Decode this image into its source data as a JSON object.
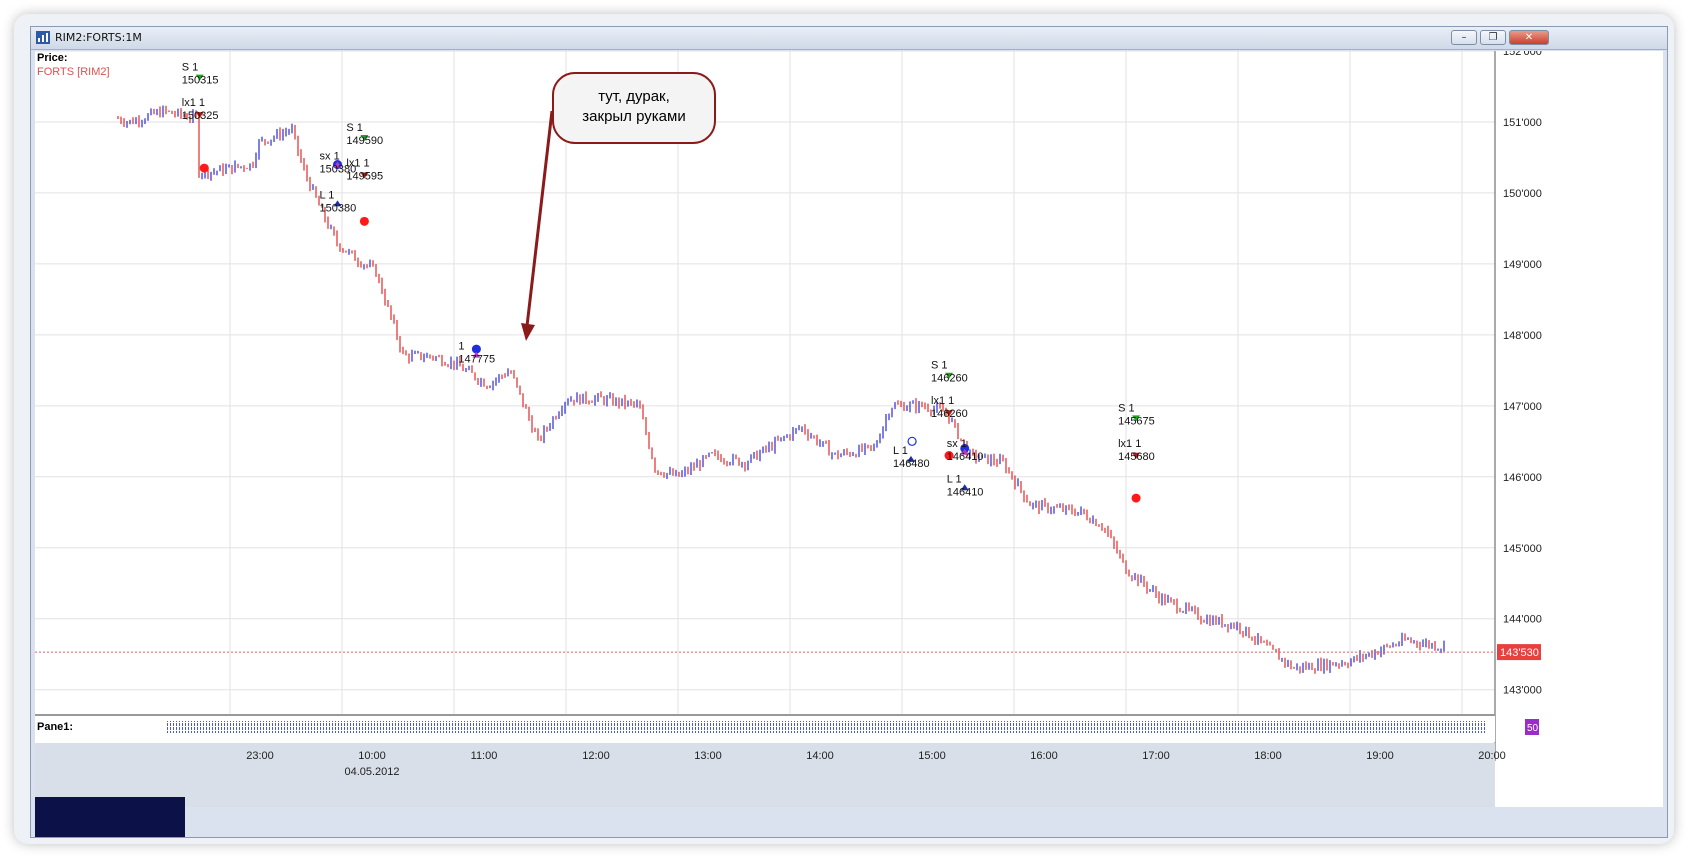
{
  "window": {
    "title": "RIM2:FORTS:1M",
    "buttons": [
      "min",
      "restore",
      "close"
    ],
    "pane_label": "Pane1:"
  },
  "price_label": "Price:",
  "legend_series": "FORTS [RIM2]",
  "callout": "тут, дурак,\nзакрыл руками",
  "colors": {
    "up": "#3a3ad8",
    "down": "#e23b3b",
    "callout_border": "#8b1a1a",
    "last_price_bg": "#e83f3f",
    "current_line": "#e86060"
  },
  "chart_data": {
    "type": "bar",
    "title": "",
    "xlabel": "",
    "ylabel": "",
    "ylim": [
      142700,
      152000
    ],
    "y_ticks": [
      "152'000",
      "151'000",
      "150'000",
      "149'000",
      "148'000",
      "147'000",
      "146'000",
      "145'000",
      "144'000",
      "143'000"
    ],
    "y_tick_values": [
      152000,
      151000,
      150000,
      149000,
      148000,
      147000,
      146000,
      145000,
      144000,
      143000
    ],
    "last_price_label": "143'530",
    "last_price": 143530,
    "x_ticks": [
      "23:00",
      "10:00",
      "11:00",
      "12:00",
      "13:00",
      "14:00",
      "15:00",
      "16:00",
      "17:00",
      "18:00",
      "19:00",
      "20:00"
    ],
    "x_tick_bar_index": [
      0,
      1,
      2,
      3,
      4,
      5,
      6,
      7,
      8,
      9,
      10,
      11
    ],
    "date_label": "04.05.2012",
    "price_path": [
      {
        "t": -1.0,
        "p": 151050
      },
      {
        "t": -0.9,
        "p": 151000
      },
      {
        "t": -0.6,
        "p": 151150
      },
      {
        "t": -0.3,
        "p": 151050
      },
      {
        "t": -0.28,
        "p": 150300
      },
      {
        "t": -0.15,
        "p": 150300
      },
      {
        "t": 0.0,
        "p": 150350
      },
      {
        "t": 0.2,
        "p": 150400
      },
      {
        "t": 0.25,
        "p": 150700
      },
      {
        "t": 0.4,
        "p": 150800
      },
      {
        "t": 0.55,
        "p": 150900
      },
      {
        "t": 0.65,
        "p": 150350
      },
      {
        "t": 0.8,
        "p": 149800
      },
      {
        "t": 0.95,
        "p": 149300
      },
      {
        "t": 1.1,
        "p": 149100
      },
      {
        "t": 1.3,
        "p": 148900
      },
      {
        "t": 1.55,
        "p": 147700
      },
      {
        "t": 1.8,
        "p": 147700
      },
      {
        "t": 2.0,
        "p": 147600
      },
      {
        "t": 2.3,
        "p": 147300
      },
      {
        "t": 2.5,
        "p": 147500
      },
      {
        "t": 2.75,
        "p": 146500
      },
      {
        "t": 3.0,
        "p": 147100
      },
      {
        "t": 3.3,
        "p": 147100
      },
      {
        "t": 3.65,
        "p": 147000
      },
      {
        "t": 3.8,
        "p": 146100
      },
      {
        "t": 4.0,
        "p": 146000
      },
      {
        "t": 4.3,
        "p": 146300
      },
      {
        "t": 4.6,
        "p": 146200
      },
      {
        "t": 5.1,
        "p": 146700
      },
      {
        "t": 5.4,
        "p": 146300
      },
      {
        "t": 5.75,
        "p": 146400
      },
      {
        "t": 5.9,
        "p": 147000
      },
      {
        "t": 6.2,
        "p": 147000
      },
      {
        "t": 6.4,
        "p": 146900
      },
      {
        "t": 6.6,
        "p": 146300
      },
      {
        "t": 6.9,
        "p": 146200
      },
      {
        "t": 7.15,
        "p": 145600
      },
      {
        "t": 7.6,
        "p": 145500
      },
      {
        "t": 7.8,
        "p": 145300
      },
      {
        "t": 8.0,
        "p": 144700
      },
      {
        "t": 8.3,
        "p": 144300
      },
      {
        "t": 8.7,
        "p": 144000
      },
      {
        "t": 9.0,
        "p": 143900
      },
      {
        "t": 9.5,
        "p": 143300
      },
      {
        "t": 10.0,
        "p": 143400
      },
      {
        "t": 10.5,
        "p": 143700
      },
      {
        "t": 10.85,
        "p": 143600
      }
    ],
    "signals": [
      {
        "type": "entry-sell",
        "text": [
          "S 1",
          "150315"
        ],
        "t": -0.27,
        "p": 151300
      },
      {
        "type": "exit-long",
        "text": [
          "lx1 1",
          "150325"
        ],
        "t": -0.27,
        "p": 150800
      },
      {
        "type": "sell-dot",
        "t": -0.23,
        "p": 150350
      },
      {
        "type": "buy-dot",
        "t": 0.96,
        "p": 150400
      },
      {
        "type": "exit-short",
        "text": [
          "sx 1",
          "150380"
        ],
        "t": 0.96,
        "p": 150050
      },
      {
        "type": "entry-long",
        "text": [
          "L 1",
          "150380"
        ],
        "t": 0.96,
        "p": 149500
      },
      {
        "type": "entry-sell",
        "text": [
          "S 1",
          "149590"
        ],
        "t": 1.2,
        "p": 150450
      },
      {
        "type": "exit-long",
        "text": [
          "lx1 1",
          "149595"
        ],
        "t": 1.2,
        "p": 149950
      },
      {
        "type": "sell-dot",
        "t": 1.2,
        "p": 149600
      },
      {
        "type": "buy-dot",
        "t": 2.2,
        "p": 147800
      },
      {
        "type": "exit-short",
        "text": [
          "1",
          "147775"
        ],
        "t": 2.2,
        "p": 147370
      },
      {
        "type": "entry-long",
        "text": [
          "L 1",
          "146480"
        ],
        "t": 6.08,
        "p": 145900
      },
      {
        "type": "hollow-dot",
        "t": 6.09,
        "p": 146500
      },
      {
        "type": "entry-sell",
        "text": [
          "S 1",
          "146260"
        ],
        "t": 6.42,
        "p": 147100
      },
      {
        "type": "exit-long",
        "text": [
          "lx1 1",
          "146260"
        ],
        "t": 6.42,
        "p": 146600
      },
      {
        "type": "sell-dot",
        "t": 6.42,
        "p": 146300
      },
      {
        "type": "buy-dot",
        "t": 6.56,
        "p": 146400
      },
      {
        "type": "exit-short",
        "text": [
          "sx 1",
          "146410"
        ],
        "t": 6.56,
        "p": 146000
      },
      {
        "type": "entry-long",
        "text": [
          "L 1",
          "146410"
        ],
        "t": 6.56,
        "p": 145500
      },
      {
        "type": "entry-sell",
        "text": [
          "S 1",
          "145675"
        ],
        "t": 8.09,
        "p": 146500
      },
      {
        "type": "exit-long",
        "text": [
          "lx1 1",
          "145680"
        ],
        "t": 8.09,
        "p": 146000
      },
      {
        "type": "sell-dot",
        "t": 8.09,
        "p": 145700
      }
    ]
  }
}
